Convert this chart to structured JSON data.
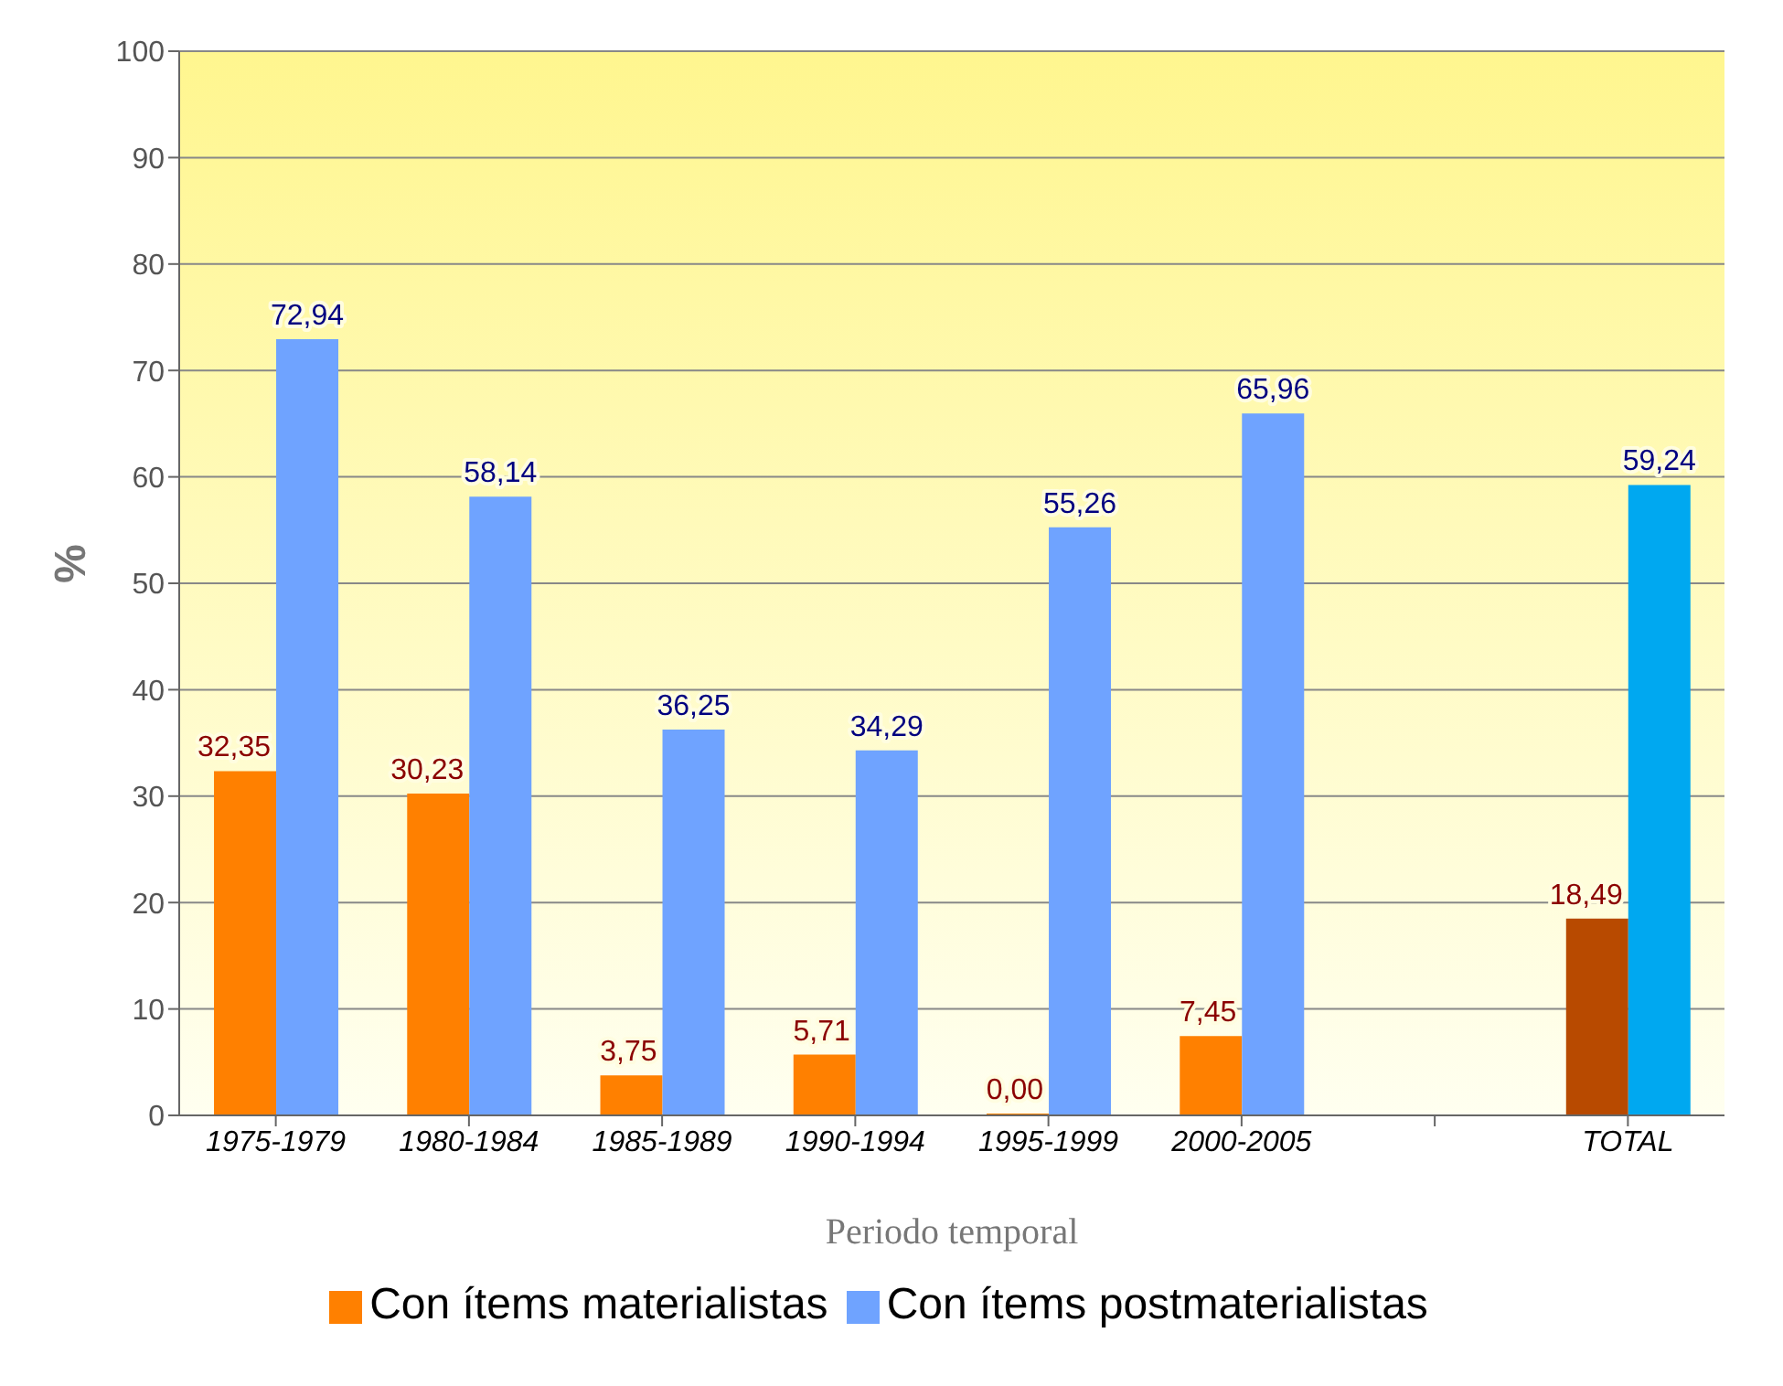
{
  "chart_data": {
    "type": "bar",
    "xlabel": "Periodo temporal",
    "ylabel": "%",
    "categories": [
      "1975-1979",
      "1980-1984",
      "1985-1989",
      "1990-1994",
      "1995-1999",
      "2000-2005",
      null,
      "TOTAL"
    ],
    "series": [
      {
        "name": "Con ítems materialistas",
        "color": "#ff8000",
        "colors": [
          "#ff8000",
          "#ff8000",
          "#ff8000",
          "#ff8000",
          "#ff8000",
          "#ff8000",
          "#ff8000",
          "#b84a00"
        ],
        "values": [
          32.35,
          30.23,
          3.75,
          5.71,
          0,
          7.45,
          null,
          18.49
        ],
        "value_labels": [
          "32,35",
          "30,23",
          "3,75",
          "5,71",
          "0,00",
          "7,45",
          null,
          "18,49"
        ]
      },
      {
        "name": "Con ítems postmaterialistas",
        "color": "#6fa3ff",
        "colors": [
          "#6fa3ff",
          "#6fa3ff",
          "#6fa3ff",
          "#6fa3ff",
          "#6fa3ff",
          "#6fa3ff",
          "#6fa3ff",
          "#00a8f0"
        ],
        "values": [
          72.94,
          58.14,
          36.25,
          34.29,
          55.26,
          65.96,
          null,
          59.24
        ],
        "value_labels": [
          "72,94",
          "58,14",
          "36,25",
          "34,29",
          "55,26",
          "65,96",
          null,
          "59,24"
        ]
      }
    ],
    "ylim": [
      0,
      100
    ],
    "yticks": [
      0,
      10,
      20,
      30,
      40,
      50,
      60,
      70,
      80,
      90,
      100
    ],
    "grid": "y",
    "legend": "bottom"
  }
}
